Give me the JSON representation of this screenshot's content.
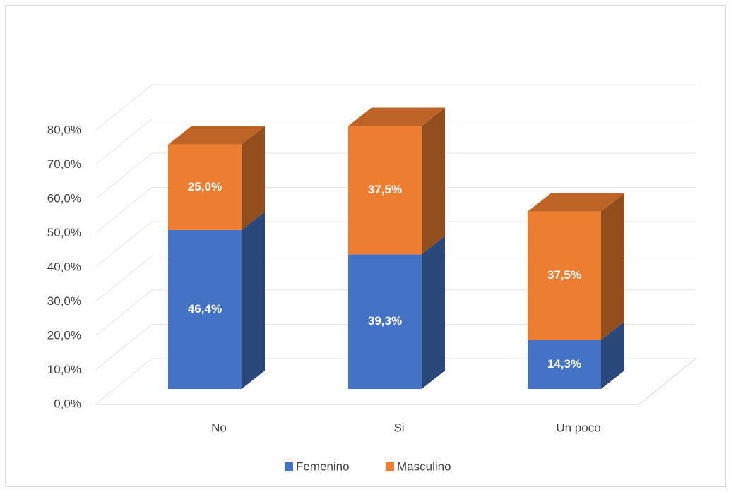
{
  "chart_data": {
    "type": "bar3d_stacked",
    "categories": [
      "No",
      "Si",
      "Un poco"
    ],
    "series": [
      {
        "name": "Femenino",
        "color": "#4472c4",
        "values": [
          46.4,
          39.3,
          14.3
        ],
        "value_labels": [
          "46,4%",
          "39,3%",
          "14,3%"
        ]
      },
      {
        "name": "Masculino",
        "color": "#ed7d31",
        "values": [
          25.0,
          37.5,
          37.5
        ],
        "value_labels": [
          "25,0%",
          "37,5%",
          "37,5%"
        ]
      }
    ],
    "ylim": [
      0,
      80
    ],
    "yticks": [
      {
        "value": 0,
        "label": "0,0%"
      },
      {
        "value": 10,
        "label": "10,0%"
      },
      {
        "value": 20,
        "label": "20,0%"
      },
      {
        "value": 30,
        "label": "30,0%"
      },
      {
        "value": 40,
        "label": "40,0%"
      },
      {
        "value": 50,
        "label": "50,0%"
      },
      {
        "value": 60,
        "label": "60,0%"
      },
      {
        "value": 70,
        "label": "70,0%"
      },
      {
        "value": 80,
        "label": "80,0%"
      }
    ],
    "grid": true,
    "legend": "bottom"
  }
}
